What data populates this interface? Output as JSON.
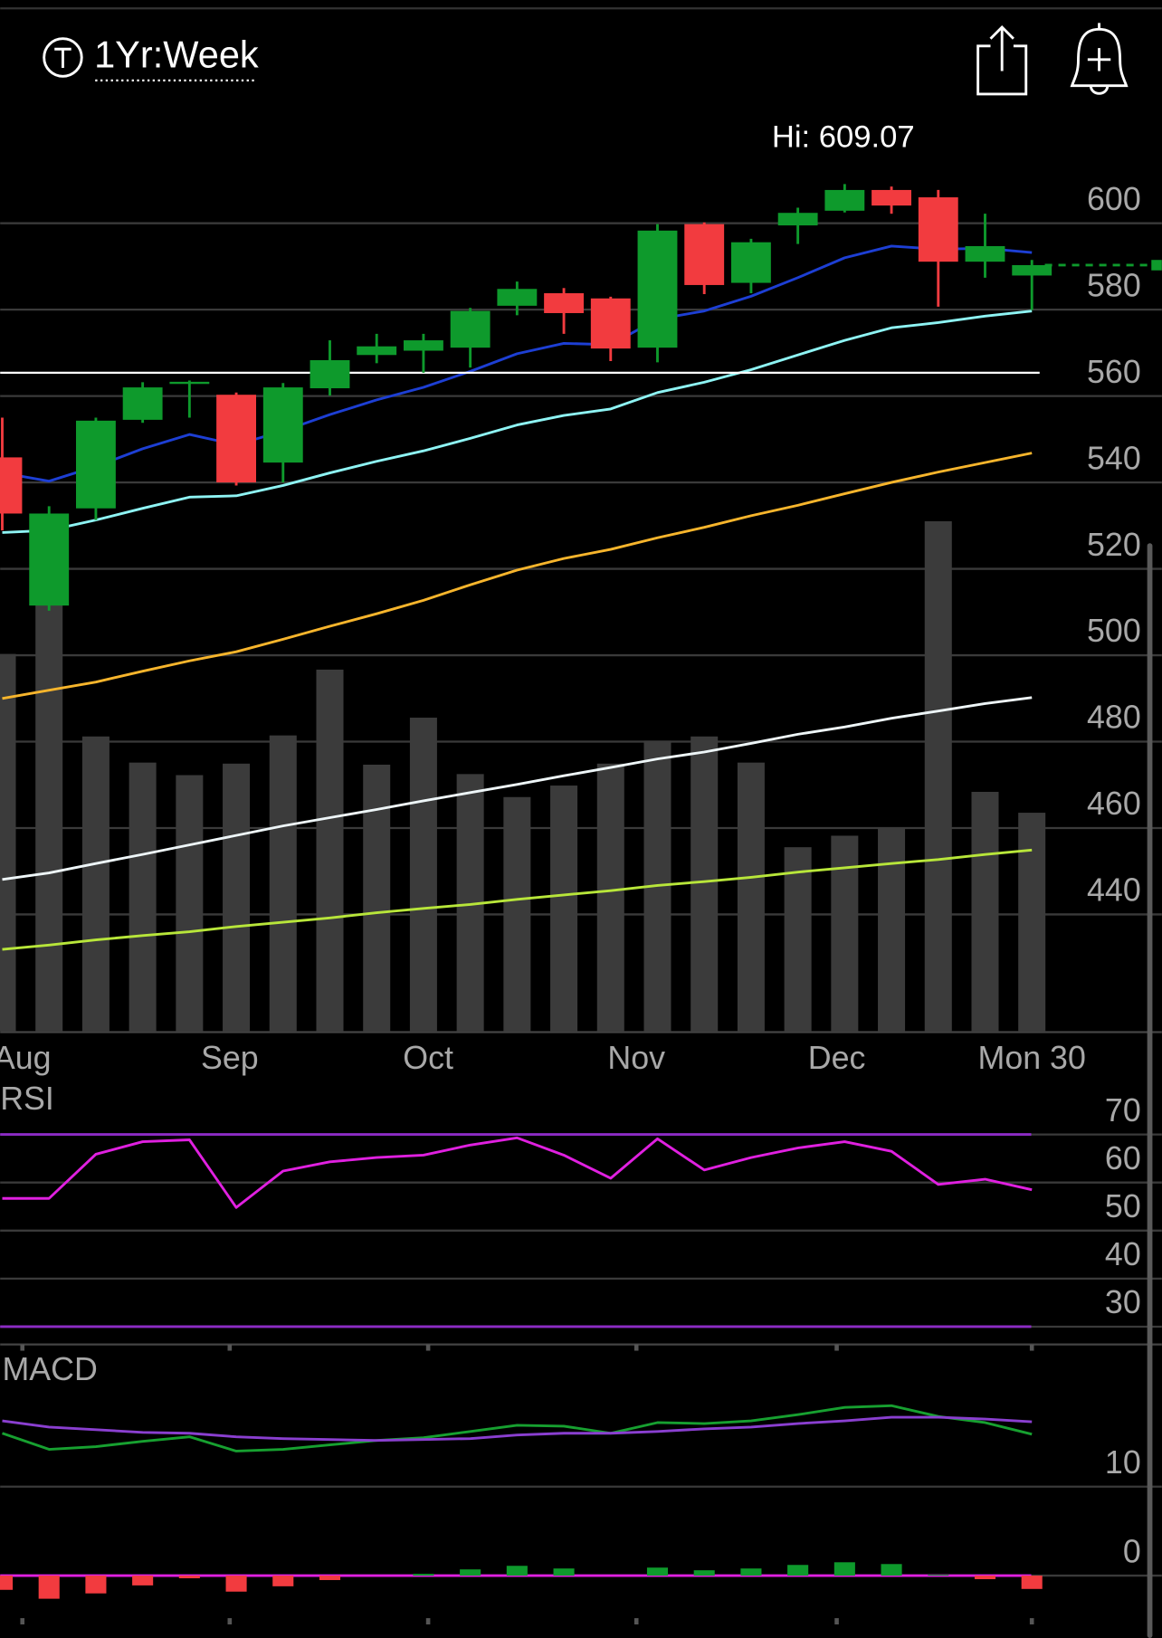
{
  "header": {
    "timeframe": "1Yr:Week"
  },
  "chart_data": [
    {
      "type": "candlestick",
      "high_label": "Hi: 609.07",
      "up_color": "#0e9a2c",
      "down_color": "#f23b3f",
      "open": [
        545.8,
        511.5,
        534.0,
        554.5,
        562.8,
        560.3,
        544.6,
        561.8,
        569.5,
        570.5,
        571.2,
        580.9,
        583.8,
        582.6,
        571.2,
        599.8,
        586.2,
        599.5,
        602.9,
        607.7,
        606.0,
        591.1,
        587.9
      ],
      "high": [
        555.0,
        534.5,
        555.0,
        563.2,
        563.6,
        560.8,
        563.0,
        572.9,
        574.4,
        574.4,
        580.4,
        586.5,
        585.0,
        583.0,
        599.8,
        600.2,
        596.4,
        603.6,
        609.07,
        608.5,
        607.7,
        602.2,
        591.5
      ],
      "low": [
        528.9,
        510.3,
        531.3,
        553.8,
        555.0,
        539.3,
        540.0,
        560.1,
        567.6,
        565.4,
        566.6,
        578.7,
        574.4,
        568.1,
        567.8,
        583.6,
        583.8,
        595.2,
        602.5,
        602.2,
        580.7,
        587.4,
        579.9
      ],
      "close": [
        532.8,
        532.8,
        554.3,
        562.0,
        563.3,
        540.0,
        562.0,
        568.3,
        571.5,
        572.9,
        579.7,
        584.8,
        579.2,
        571.0,
        598.3,
        585.7,
        595.6,
        602.4,
        607.7,
        604.1,
        591.1,
        594.7,
        590.3
      ],
      "series": [
        {
          "color": "#1d3fd4",
          "values": [
            542.2,
            540.3,
            543.7,
            547.8,
            551.1,
            548.7,
            551.9,
            555.7,
            559.1,
            562.0,
            565.7,
            569.8,
            572.2,
            571.9,
            577.8,
            579.7,
            583.1,
            587.4,
            592.0,
            594.7,
            594.0,
            594.2,
            593.2
          ]
        },
        {
          "color": "#8ef4f4",
          "values": [
            528.4,
            528.9,
            531.3,
            534.0,
            536.6,
            536.9,
            539.3,
            542.2,
            544.9,
            547.3,
            550.2,
            553.3,
            555.5,
            557.0,
            560.8,
            563.2,
            566.1,
            569.5,
            572.9,
            575.8,
            577.0,
            578.5,
            579.7
          ]
        },
        {
          "color": "#f7b52c",
          "values": [
            490.0,
            491.9,
            493.8,
            496.3,
            498.7,
            500.8,
            503.7,
            506.7,
            509.6,
            512.7,
            516.3,
            519.7,
            522.4,
            524.5,
            527.2,
            529.6,
            532.3,
            534.7,
            537.4,
            540.0,
            542.4,
            544.6,
            546.8
          ]
        },
        {
          "color": "#eef6f8",
          "values": [
            448.1,
            449.6,
            451.8,
            453.9,
            456.1,
            458.3,
            460.5,
            462.4,
            464.3,
            466.3,
            468.2,
            470.1,
            472.1,
            474.0,
            476.0,
            477.6,
            479.6,
            481.7,
            483.4,
            485.4,
            487.1,
            488.8,
            490.2
          ]
        },
        {
          "color": "#b8e63a",
          "values": [
            431.9,
            432.9,
            434.1,
            435.1,
            436.0,
            437.2,
            438.2,
            439.2,
            440.4,
            441.4,
            442.3,
            443.5,
            444.5,
            445.5,
            446.7,
            447.6,
            448.6,
            449.8,
            450.8,
            451.8,
            452.7,
            453.9,
            454.9
          ]
        }
      ],
      "hline": {
        "value": 565.4,
        "color": "#ffffff"
      },
      "volume": {
        "color": "#3b3b3b",
        "lim": [
          0,
          856
        ],
        "values": [
          361,
          409,
          282,
          257,
          245,
          256,
          283,
          346,
          255,
          300,
          246,
          224,
          235,
          256,
          278,
          282,
          257,
          176,
          187,
          195,
          488,
          229,
          209
        ]
      },
      "xlim": [
        -0.0446,
        24.777
      ],
      "xticks": [
        {
          "value": 0.43,
          "label": "Aug"
        },
        {
          "value": 4.86,
          "label": "Sep"
        },
        {
          "value": 9.1,
          "label": "Oct"
        },
        {
          "value": 13.55,
          "label": "Nov"
        },
        {
          "value": 17.83,
          "label": "Dec"
        },
        {
          "value": 22,
          "label": "Mon 30"
        }
      ],
      "ylim": [
        413,
        620
      ],
      "yticks": [
        600,
        580,
        560,
        540,
        520,
        500,
        480,
        460,
        440
      ],
      "grid": true
    },
    {
      "type": "line",
      "title": "RSI",
      "series": [
        {
          "color": "#e020e0",
          "values": [
            56.7,
            56.7,
            65.9,
            68.5,
            68.9,
            54.8,
            62.4,
            64.3,
            65.2,
            65.7,
            67.8,
            69.3,
            65.7,
            60.9,
            69.1,
            62.6,
            65.2,
            67.2,
            68.5,
            66.5,
            59.6,
            60.7,
            58.5
          ]
        }
      ],
      "levels": [
        70,
        30
      ],
      "level_color": "#8c2cc4",
      "ylim": [
        26.3,
        80
      ],
      "yticks": [
        70,
        60,
        50,
        40,
        30
      ],
      "grid": true
    },
    {
      "type": "macd",
      "title": "MACD",
      "series": [
        {
          "color": "#17a030",
          "values": [
            16.0,
            14.2,
            14.5,
            15.1,
            15.6,
            14.0,
            14.2,
            14.7,
            15.2,
            15.5,
            16.2,
            16.9,
            16.8,
            16.0,
            17.2,
            17.1,
            17.4,
            18.1,
            18.9,
            19.1,
            17.9,
            17.2,
            15.9
          ]
        },
        {
          "color": "#8a3fd0",
          "values": [
            17.4,
            16.7,
            16.4,
            16.1,
            16.0,
            15.6,
            15.4,
            15.3,
            15.2,
            15.3,
            15.4,
            15.8,
            16.0,
            16.0,
            16.2,
            16.5,
            16.7,
            17.1,
            17.4,
            17.8,
            17.8,
            17.6,
            17.3
          ]
        }
      ],
      "histogram": {
        "up_color": "#0e9a2c",
        "down_color": "#f23b3f",
        "values": [
          -1.6,
          -2.6,
          -2.0,
          -1.1,
          -0.3,
          -1.8,
          -1.2,
          -0.5,
          0.0,
          0.2,
          0.7,
          1.1,
          0.8,
          0.0,
          0.9,
          0.6,
          0.8,
          1.2,
          1.5,
          1.3,
          0.1,
          -0.4,
          -1.5
        ]
      },
      "zero_color": "#e020e0",
      "ylim": [
        -4.9,
        25.4
      ],
      "yticks": [
        10,
        0
      ],
      "grid": true
    }
  ]
}
